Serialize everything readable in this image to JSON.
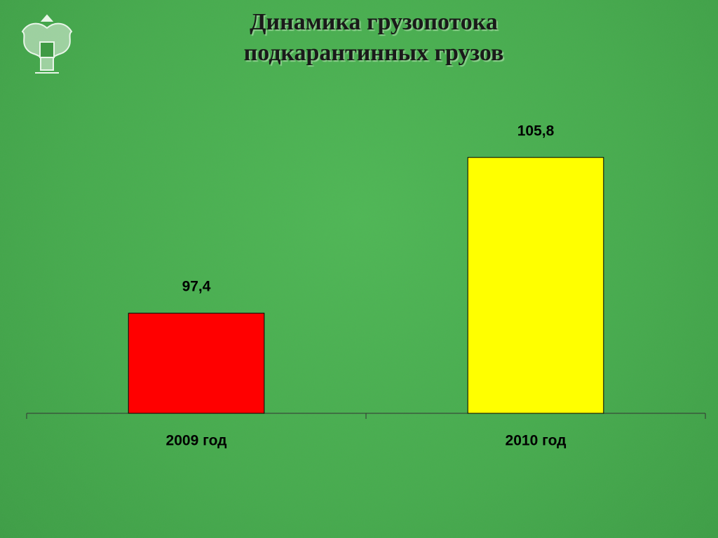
{
  "chart_data": {
    "type": "bar",
    "title": "Динамика грузопотока подкарантинных грузов",
    "categories": [
      "2009 год",
      "2010 год"
    ],
    "values": [
      97.4,
      105.8
    ],
    "value_labels": [
      "97,4",
      "105,8"
    ],
    "colors": [
      "#ff0000",
      "#ffff00"
    ],
    "ylim": [
      92,
      107
    ]
  }
}
